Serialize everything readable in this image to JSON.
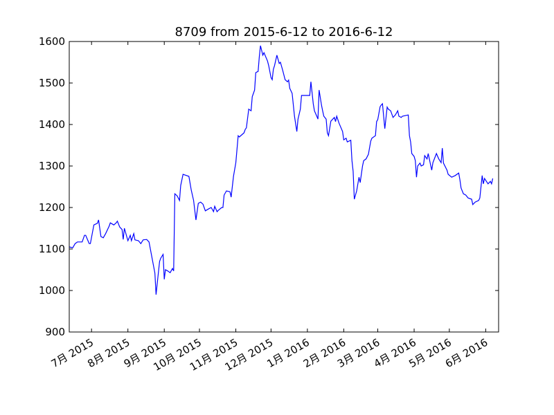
{
  "chart_data": {
    "type": "line",
    "title": "8709 from 2015-6-12 to 2016-6-12",
    "color": "#0000ff",
    "xlim": [
      "2015-06-12",
      "2016-06-12"
    ],
    "ylim": [
      900,
      1600
    ],
    "yticks": [
      900,
      1000,
      1100,
      1200,
      1300,
      1400,
      1500,
      1600
    ],
    "xticks": [
      {
        "value": "2015-07-01",
        "label": "7月 2015"
      },
      {
        "value": "2015-08-01",
        "label": "8月 2015"
      },
      {
        "value": "2015-09-01",
        "label": "9月 2015"
      },
      {
        "value": "2015-10-01",
        "label": "10月 2015"
      },
      {
        "value": "2015-11-01",
        "label": "11月 2015"
      },
      {
        "value": "2015-12-01",
        "label": "12月 2015"
      },
      {
        "value": "2016-01-01",
        "label": "1月 2016"
      },
      {
        "value": "2016-02-01",
        "label": "2月 2016"
      },
      {
        "value": "2016-03-01",
        "label": "3月 2016"
      },
      {
        "value": "2016-04-01",
        "label": "4月 2016"
      },
      {
        "value": "2016-05-01",
        "label": "5月 2016"
      },
      {
        "value": "2016-06-01",
        "label": "6月 2016"
      }
    ],
    "x": [
      "2015-06-12",
      "2015-06-15",
      "2015-06-17",
      "2015-06-19",
      "2015-06-23",
      "2015-06-25",
      "2015-06-26",
      "2015-06-29",
      "2015-06-30",
      "2015-07-03",
      "2015-07-06",
      "2015-07-07",
      "2015-07-09",
      "2015-07-11",
      "2015-07-13",
      "2015-07-16",
      "2015-07-17",
      "2015-07-20",
      "2015-07-22",
      "2015-07-23",
      "2015-07-25",
      "2015-07-27",
      "2015-07-28",
      "2015-07-29",
      "2015-07-31",
      "2015-08-01",
      "2015-08-03",
      "2015-08-04",
      "2015-08-06",
      "2015-08-07",
      "2015-08-10",
      "2015-08-12",
      "2015-08-14",
      "2015-08-17",
      "2015-08-19",
      "2015-08-24",
      "2015-08-25",
      "2015-08-26",
      "2015-08-28",
      "2015-08-29",
      "2015-08-31",
      "2015-09-01",
      "2015-09-02",
      "2015-09-04",
      "2015-09-06",
      "2015-09-08",
      "2015-09-09",
      "2015-09-10",
      "2015-09-12",
      "2015-09-14",
      "2015-09-15",
      "2015-09-17",
      "2015-09-22",
      "2015-09-24",
      "2015-09-26",
      "2015-09-28",
      "2015-09-30",
      "2015-10-02",
      "2015-10-04",
      "2015-10-06",
      "2015-10-09",
      "2015-10-11",
      "2015-10-13",
      "2015-10-14",
      "2015-10-16",
      "2015-10-17",
      "2015-10-20",
      "2015-10-21",
      "2015-10-22",
      "2015-10-24",
      "2015-10-27",
      "2015-10-28",
      "2015-10-30",
      "2015-11-01",
      "2015-11-03",
      "2015-11-04",
      "2015-11-06",
      "2015-11-08",
      "2015-11-09",
      "2015-11-10",
      "2015-11-12",
      "2015-11-14",
      "2015-11-15",
      "2015-11-17",
      "2015-11-18",
      "2015-11-20",
      "2015-11-21",
      "2015-11-22",
      "2015-11-24",
      "2015-11-25",
      "2015-11-28",
      "2015-11-29",
      "2015-12-01",
      "2015-12-02",
      "2015-12-03",
      "2015-12-04",
      "2015-12-06",
      "2015-12-08",
      "2015-12-09",
      "2015-12-11",
      "2015-12-13",
      "2015-12-15",
      "2015-12-16",
      "2015-12-17",
      "2015-12-19",
      "2015-12-21",
      "2015-12-23",
      "2015-12-24",
      "2015-12-26",
      "2015-12-27",
      "2015-12-31",
      "2016-01-03",
      "2016-01-04",
      "2016-01-06",
      "2016-01-07",
      "2016-01-09",
      "2016-01-10",
      "2016-01-11",
      "2016-01-13",
      "2016-01-14",
      "2016-01-15",
      "2016-01-17",
      "2016-01-18",
      "2016-01-19",
      "2016-01-21",
      "2016-01-24",
      "2016-01-25",
      "2016-01-26",
      "2016-01-28",
      "2016-01-31",
      "2016-02-01",
      "2016-02-03",
      "2016-02-04",
      "2016-02-07",
      "2016-02-08",
      "2016-02-09",
      "2016-02-10",
      "2016-02-12",
      "2016-02-14",
      "2016-02-15",
      "2016-02-17",
      "2016-02-18",
      "2016-02-20",
      "2016-02-22",
      "2016-02-24",
      "2016-02-25",
      "2016-02-28",
      "2016-02-29",
      "2016-03-01",
      "2016-03-03",
      "2016-03-04",
      "2016-03-05",
      "2016-03-07",
      "2016-03-09",
      "2016-03-10",
      "2016-03-12",
      "2016-03-14",
      "2016-03-16",
      "2016-03-18",
      "2016-03-19",
      "2016-03-21",
      "2016-03-22",
      "2016-03-27",
      "2016-03-28",
      "2016-03-29",
      "2016-03-30",
      "2016-04-01",
      "2016-04-02",
      "2016-04-03",
      "2016-04-04",
      "2016-04-06",
      "2016-04-07",
      "2016-04-09",
      "2016-04-10",
      "2016-04-12",
      "2016-04-13",
      "2016-04-15",
      "2016-04-16",
      "2016-04-17",
      "2016-04-20",
      "2016-04-22",
      "2016-04-24",
      "2016-04-25",
      "2016-04-26",
      "2016-04-29",
      "2016-04-30",
      "2016-05-03",
      "2016-05-06",
      "2016-05-09",
      "2016-05-10",
      "2016-05-11",
      "2016-05-13",
      "2016-05-15",
      "2016-05-17",
      "2016-05-20",
      "2016-05-21",
      "2016-05-23",
      "2016-05-26",
      "2016-05-27",
      "2016-05-29",
      "2016-05-30",
      "2016-05-31",
      "2016-06-03",
      "2016-06-05",
      "2016-06-06",
      "2016-06-07"
    ],
    "values": [
      1105,
      1103,
      1113,
      1117,
      1117,
      1133,
      1133,
      1113,
      1113,
      1158,
      1162,
      1170,
      1130,
      1127,
      1137,
      1155,
      1163,
      1158,
      1163,
      1167,
      1153,
      1147,
      1123,
      1150,
      1130,
      1120,
      1133,
      1120,
      1137,
      1122,
      1120,
      1113,
      1122,
      1123,
      1117,
      1042,
      990,
      1017,
      1070,
      1078,
      1087,
      1027,
      1050,
      1047,
      1043,
      1053,
      1047,
      1233,
      1228,
      1217,
      1253,
      1280,
      1275,
      1242,
      1217,
      1170,
      1210,
      1213,
      1208,
      1192,
      1197,
      1200,
      1190,
      1203,
      1190,
      1193,
      1200,
      1200,
      1230,
      1240,
      1238,
      1225,
      1275,
      1308,
      1373,
      1370,
      1375,
      1380,
      1388,
      1392,
      1437,
      1433,
      1467,
      1483,
      1525,
      1528,
      1563,
      1590,
      1567,
      1573,
      1553,
      1542,
      1513,
      1508,
      1533,
      1542,
      1567,
      1547,
      1550,
      1530,
      1508,
      1503,
      1507,
      1487,
      1475,
      1420,
      1383,
      1413,
      1437,
      1470,
      1470,
      1470,
      1503,
      1450,
      1433,
      1420,
      1413,
      1483,
      1447,
      1433,
      1420,
      1413,
      1380,
      1373,
      1408,
      1417,
      1407,
      1420,
      1403,
      1383,
      1363,
      1367,
      1358,
      1362,
      1313,
      1287,
      1220,
      1240,
      1273,
      1260,
      1300,
      1313,
      1317,
      1328,
      1360,
      1367,
      1373,
      1407,
      1412,
      1443,
      1447,
      1450,
      1390,
      1442,
      1437,
      1433,
      1417,
      1423,
      1433,
      1420,
      1417,
      1420,
      1423,
      1373,
      1358,
      1330,
      1323,
      1313,
      1273,
      1300,
      1307,
      1300,
      1303,
      1325,
      1317,
      1330,
      1303,
      1290,
      1308,
      1330,
      1317,
      1308,
      1343,
      1307,
      1290,
      1280,
      1273,
      1277,
      1283,
      1267,
      1247,
      1233,
      1230,
      1223,
      1220,
      1207,
      1213,
      1217,
      1223,
      1277,
      1257,
      1270,
      1257,
      1263,
      1257,
      1270
    ]
  }
}
